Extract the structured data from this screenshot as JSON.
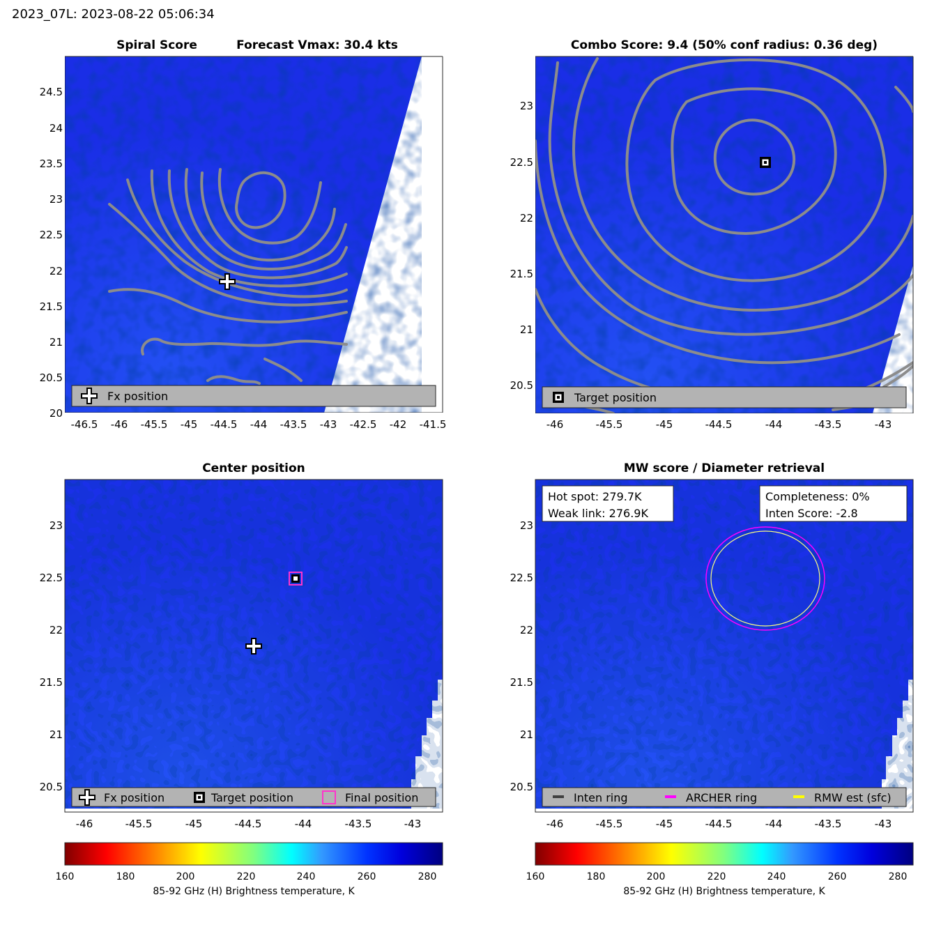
{
  "header": {
    "title": "2023_07L: 2023-08-22 05:06:34"
  },
  "colors": {
    "bg_blue": "#1a2ee6",
    "contour": "#8c8c8c",
    "legend_bg": "#b3b3b3",
    "archer": "#ff00ff",
    "rmw": "#ffff80",
    "final": "#ff33cc"
  },
  "panels": {
    "spiral": {
      "title_left": "Spiral Score",
      "title_right": "Forecast Vmax: 30.4 kts",
      "xticks": [
        "-46.5",
        "-46",
        "-45.5",
        "-45",
        "-44.5",
        "-44",
        "-43.5",
        "-43",
        "-42.5",
        "-42",
        "-41.5"
      ],
      "yticks": [
        "20",
        "20.5",
        "21",
        "21.5",
        "22",
        "22.5",
        "23",
        "23.5",
        "24",
        "24.5"
      ],
      "legend": [
        "Fx position"
      ],
      "fx_position": {
        "lon": -44.5,
        "lat": 21.85
      }
    },
    "combo": {
      "title": "Combo Score: 9.4  (50% conf radius: 0.36 deg)",
      "xticks": [
        "-46",
        "-45.5",
        "-45",
        "-44.5",
        "-44",
        "-43.5",
        "-43"
      ],
      "yticks": [
        "20.5",
        "21",
        "21.5",
        "22",
        "22.5",
        "23"
      ],
      "legend": [
        "Target position"
      ],
      "target_position": {
        "lon": -44.07,
        "lat": 22.5
      }
    },
    "center": {
      "title": "Center position",
      "xticks": [
        "-46",
        "-45.5",
        "-45",
        "-44.5",
        "-44",
        "-43.5",
        "-43"
      ],
      "yticks": [
        "20.5",
        "21",
        "21.5",
        "22",
        "22.5",
        "23"
      ],
      "legend": [
        "Fx position",
        "Target position",
        "Final position"
      ]
    },
    "mw": {
      "title": "MW score / Diameter retrieval",
      "xticks": [
        "-46",
        "-45.5",
        "-45",
        "-44.5",
        "-44",
        "-43.5",
        "-43"
      ],
      "yticks": [
        "20.5",
        "21",
        "21.5",
        "22",
        "22.5",
        "23"
      ],
      "box_left": [
        "Hot spot: 279.7K",
        "Weak link: 276.9K"
      ],
      "box_right": [
        "Completeness: 0%",
        "Inten Score: -2.8"
      ],
      "legend": [
        "Inten ring",
        "ARCHER ring",
        "RMW est (sfc)"
      ]
    }
  },
  "colorbar": {
    "ticks": [
      "160",
      "180",
      "200",
      "220",
      "240",
      "260",
      "280"
    ],
    "label": "85-92 GHz (H) Brightness temperature, K"
  }
}
